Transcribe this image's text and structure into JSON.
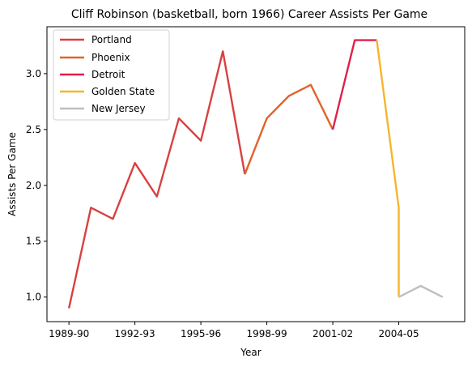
{
  "chart_data": {
    "type": "line",
    "title": "Cliff Robinson (basketball, born 1966) Career Assists Per Game",
    "xlabel": "Year",
    "ylabel": "Assists Per Game",
    "x_tick_labels": [
      "1989-90",
      "1992-93",
      "1995-96",
      "1998-99",
      "2001-02",
      "2004-05"
    ],
    "x_tick_seasons": [
      0,
      3,
      6,
      9,
      12,
      15
    ],
    "y_ticks": [
      1.0,
      1.5,
      2.0,
      2.5,
      3.0
    ],
    "y_tick_labels": [
      "1.0",
      "1.5",
      "2.0",
      "2.5",
      "3.0"
    ],
    "xlim": [
      -1,
      18
    ],
    "ylim": [
      0.78,
      3.42
    ],
    "grid": false,
    "legend_position": "top-left",
    "series": [
      {
        "name": "Portland",
        "color": "#d94040",
        "points": [
          [
            0,
            0.9
          ],
          [
            1,
            1.8
          ],
          [
            2,
            1.7
          ],
          [
            3,
            2.2
          ],
          [
            4,
            1.9
          ],
          [
            5,
            2.6
          ],
          [
            6,
            2.4
          ],
          [
            7,
            3.2
          ],
          [
            8,
            2.1
          ]
        ]
      },
      {
        "name": "Phoenix",
        "color": "#e2622a",
        "points": [
          [
            8,
            2.1
          ],
          [
            9,
            2.6
          ],
          [
            10,
            2.8
          ],
          [
            11,
            2.9
          ],
          [
            12,
            2.5
          ]
        ]
      },
      {
        "name": "Detroit",
        "color": "#e0204a",
        "points": [
          [
            12,
            2.5
          ],
          [
            13,
            3.3
          ],
          [
            14,
            3.3
          ]
        ]
      },
      {
        "name": "Golden State",
        "color": "#f7b52c",
        "points": [
          [
            14,
            3.3
          ],
          [
            15,
            1.8
          ],
          [
            15,
            1.0
          ]
        ]
      },
      {
        "name": "New Jersey",
        "color": "#bfbfbf",
        "points": [
          [
            15,
            1.0
          ],
          [
            16,
            1.1
          ],
          [
            17,
            1.0
          ]
        ]
      }
    ]
  }
}
